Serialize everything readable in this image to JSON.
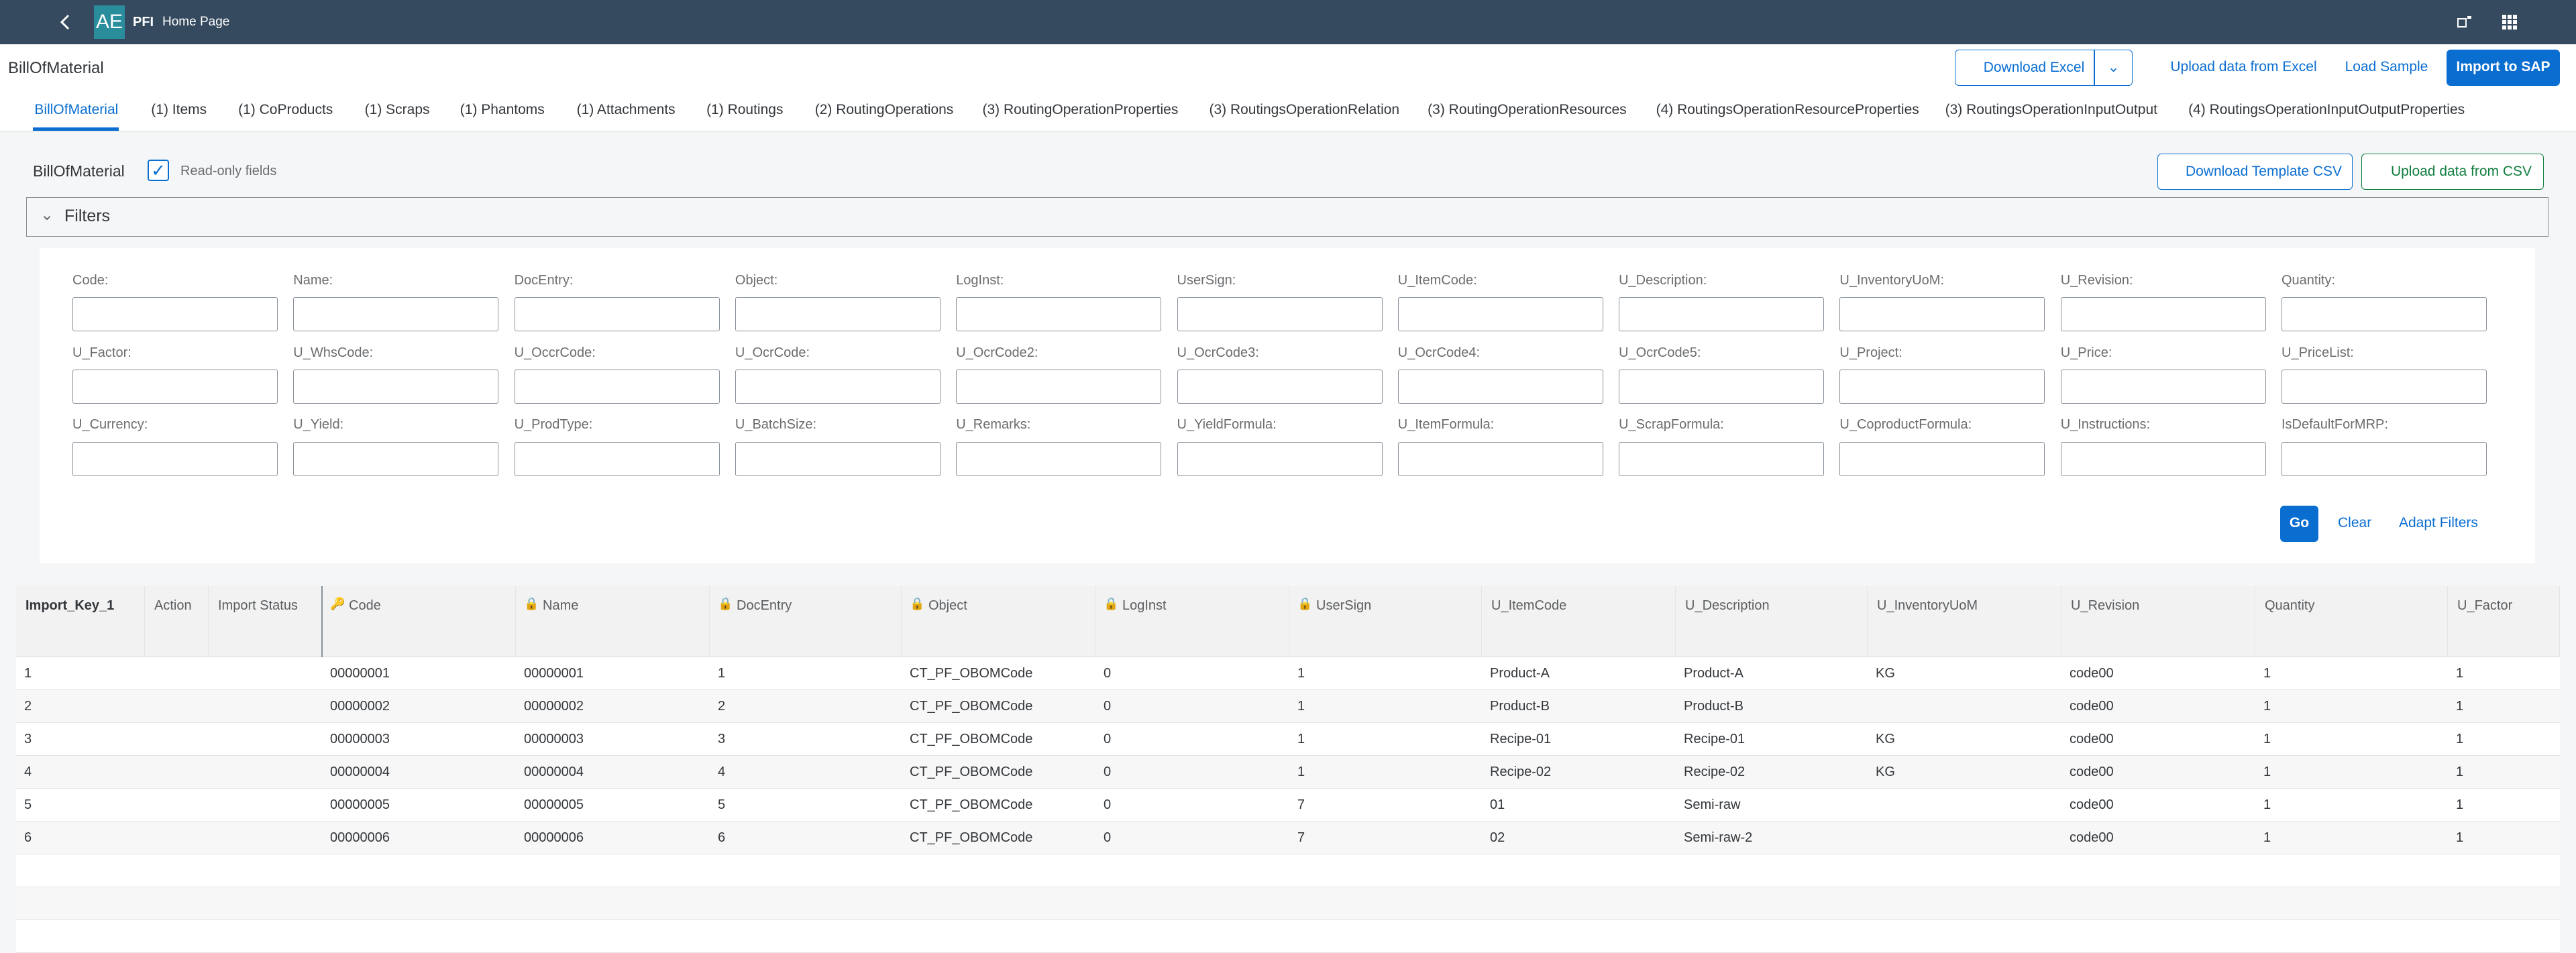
{
  "shell": {
    "logo": "AE",
    "app": "PFI",
    "page": "Home Page"
  },
  "header": {
    "title": "BillOfMaterial",
    "buttons": [
      "Download Excel",
      "Upload data from Excel",
      "Load Sample",
      "Import to SAP"
    ]
  },
  "tabs": [
    "BillOfMaterial",
    "(1) Items",
    "(1) CoProducts",
    "(1) Scraps",
    "(1) Phantoms",
    "(1) Attachments",
    "(1) Routings",
    "(2) RoutingOperations",
    "(3) RoutingOperationProperties",
    "(3) RoutingsOperationRelation",
    "(3) RoutingOperationResources",
    "(4) RoutingsOperationResourceProperties",
    "(3) RoutingsOperationInputOutput",
    "(4) RoutingsOperationInputOutputProperties"
  ],
  "toolbar": {
    "title": "BillOfMaterial",
    "checkbox": "Read-only fields",
    "checked": true,
    "buttons": [
      "Download Template CSV",
      "Upload data from CSV"
    ]
  },
  "filters": {
    "title": "Filters",
    "fields": [
      "Code:",
      "Name:",
      "DocEntry:",
      "Object:",
      "LogInst:",
      "UserSign:",
      "U_ItemCode:",
      "U_Description:",
      "U_InventoryUoM:",
      "U_Revision:",
      "Quantity:",
      "U_Factor:",
      "U_WhsCode:",
      "U_OccrCode:",
      "U_OcrCode:",
      "U_OcrCode2:",
      "U_OcrCode3:",
      "U_OcrCode4:",
      "U_OcrCode5:",
      "U_Project:",
      "U_Price:",
      "U_PriceList:",
      "U_Currency:",
      "U_Yield:",
      "U_ProdType:",
      "U_BatchSize:",
      "U_Remarks:",
      "U_YieldFormula:",
      "U_ItemFormula:",
      "U_ScrapFormula:",
      "U_CoproductFormula:",
      "U_Instructions:",
      "IsDefaultForMRP:"
    ],
    "actions": [
      "Go",
      "Clear",
      "Adapt Filters"
    ]
  },
  "table": {
    "columns": [
      "Import_Key_1",
      "Action",
      "Import Status",
      "Code",
      "Name",
      "DocEntry",
      "Object",
      "LogInst",
      "UserSign",
      "U_ItemCode",
      "U_Description",
      "U_InventoryUoM",
      "U_Revision",
      "Quantity",
      "U_Factor"
    ],
    "rows": [
      [
        "1",
        null,
        null,
        "00000001",
        "00000001",
        "1",
        "CT_PF_OBOMCode",
        "0",
        "1",
        "Product-A",
        "Product-A",
        "KG",
        "code00",
        "1",
        "1"
      ],
      [
        "2",
        null,
        null,
        "00000002",
        "00000002",
        "2",
        "CT_PF_OBOMCode",
        "0",
        "1",
        "Product-B",
        "Product-B",
        null,
        "code00",
        "1",
        "1"
      ],
      [
        "3",
        null,
        null,
        "00000003",
        "00000003",
        "3",
        "CT_PF_OBOMCode",
        "0",
        "1",
        "Recipe-01",
        "Recipe-01",
        "KG",
        "code00",
        "1",
        "1"
      ],
      [
        "4",
        null,
        null,
        "00000004",
        "00000004",
        "4",
        "CT_PF_OBOMCode",
        "0",
        "1",
        "Recipe-02",
        "Recipe-02",
        "KG",
        "code00",
        "1",
        "1"
      ],
      [
        "5",
        null,
        null,
        "00000005",
        "00000005",
        "5",
        "CT_PF_OBOMCode",
        "0",
        "7",
        "01",
        "Semi-raw",
        null,
        "code00",
        "1",
        "1"
      ],
      [
        "6",
        null,
        null,
        "00000006",
        "00000006",
        "6",
        "CT_PF_OBOMCode",
        "0",
        "7",
        "02",
        "Semi-raw-2",
        null,
        "code00",
        "1",
        "1"
      ]
    ]
  }
}
